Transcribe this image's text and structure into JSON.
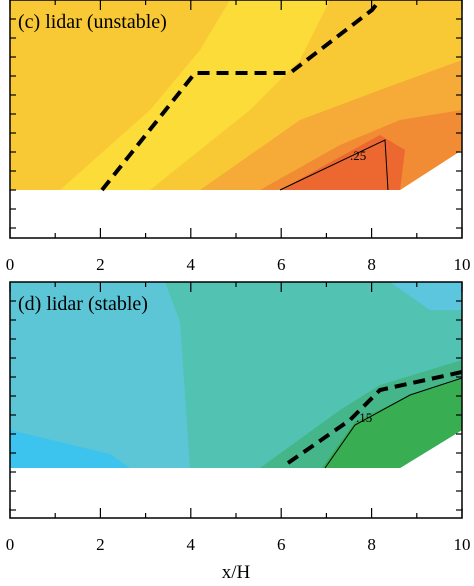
{
  "chart_data": [
    {
      "type": "contour",
      "title": "(c) lidar (unstable)",
      "xlim": [
        0,
        10
      ],
      "xticks": [
        0,
        2,
        4,
        6,
        8,
        10
      ],
      "contour_levels": [
        {
          "value": 0.25,
          "label": ".25"
        }
      ]
    },
    {
      "type": "contour",
      "title": "(d) lidar (stable)",
      "xlim": [
        0,
        10
      ],
      "xticks": [
        0,
        2,
        4,
        6,
        8,
        10
      ],
      "contour_levels": [
        {
          "value": 0.15,
          "label": ".15"
        }
      ],
      "xlabel": "x/H"
    }
  ]
}
